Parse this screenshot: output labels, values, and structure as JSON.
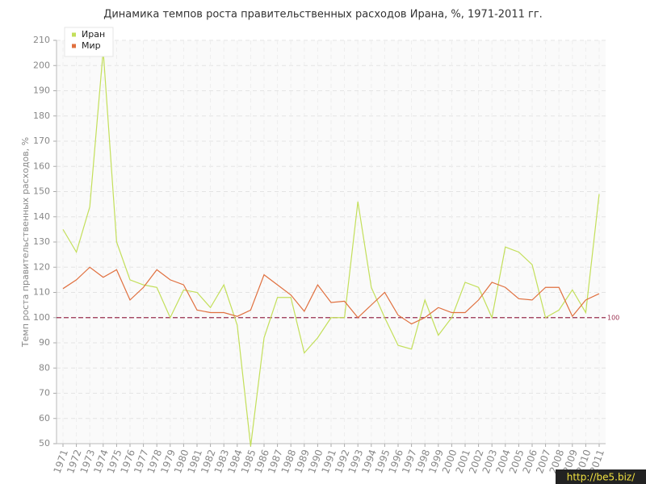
{
  "chart_data": {
    "type": "line",
    "title": "Динамика темпов роста правительственных расходов Ирана, %, 1971-2011 гг.",
    "y_label": "Темп роста правительственных расходов, %",
    "categories": [
      "1971",
      "1972",
      "1973",
      "1974",
      "1975",
      "1976",
      "1977",
      "1978",
      "1979",
      "1980",
      "1981",
      "1982",
      "1983",
      "1984",
      "1985",
      "1986",
      "1987",
      "1988",
      "1989",
      "1990",
      "1991",
      "1992",
      "1993",
      "1994",
      "1995",
      "1996",
      "1997",
      "1998",
      "1999",
      "2000",
      "2001",
      "2002",
      "2003",
      "2004",
      "2005",
      "2006",
      "2007",
      "2008",
      "2009",
      "2010",
      "2011"
    ],
    "series": [
      {
        "name": "Иран",
        "color": "#c3df5a",
        "values": [
          135,
          126,
          144,
          206,
          130,
          115,
          113,
          112,
          100,
          111,
          110,
          104,
          113,
          97,
          49,
          92,
          108,
          108,
          86,
          92,
          100,
          100,
          146,
          112,
          100,
          89,
          87.5,
          107,
          93,
          100,
          114,
          112,
          100,
          128,
          126,
          121,
          100,
          103,
          111,
          102,
          149
        ]
      },
      {
        "name": "Мир",
        "color": "#e0703f",
        "values": [
          111.5,
          115,
          120,
          116,
          119,
          107,
          112,
          119,
          115,
          113,
          103,
          102,
          102,
          100.5,
          103,
          117,
          113,
          109,
          102.5,
          113,
          106,
          106.5,
          100,
          105,
          110,
          101,
          97.5,
          100,
          104,
          102,
          102,
          107,
          114,
          112,
          107.5,
          107,
          112,
          112,
          100.5,
          107,
          109.5
        ]
      }
    ],
    "ylim": [
      50,
      210
    ],
    "yticks": [
      50,
      60,
      70,
      80,
      90,
      100,
      110,
      120,
      130,
      140,
      150,
      160,
      170,
      180,
      190,
      200,
      210
    ],
    "reference_line": 100,
    "reference_color": "#9b3050",
    "grid": true,
    "legend": "top-left",
    "watermark": "http://be5.biz/"
  }
}
